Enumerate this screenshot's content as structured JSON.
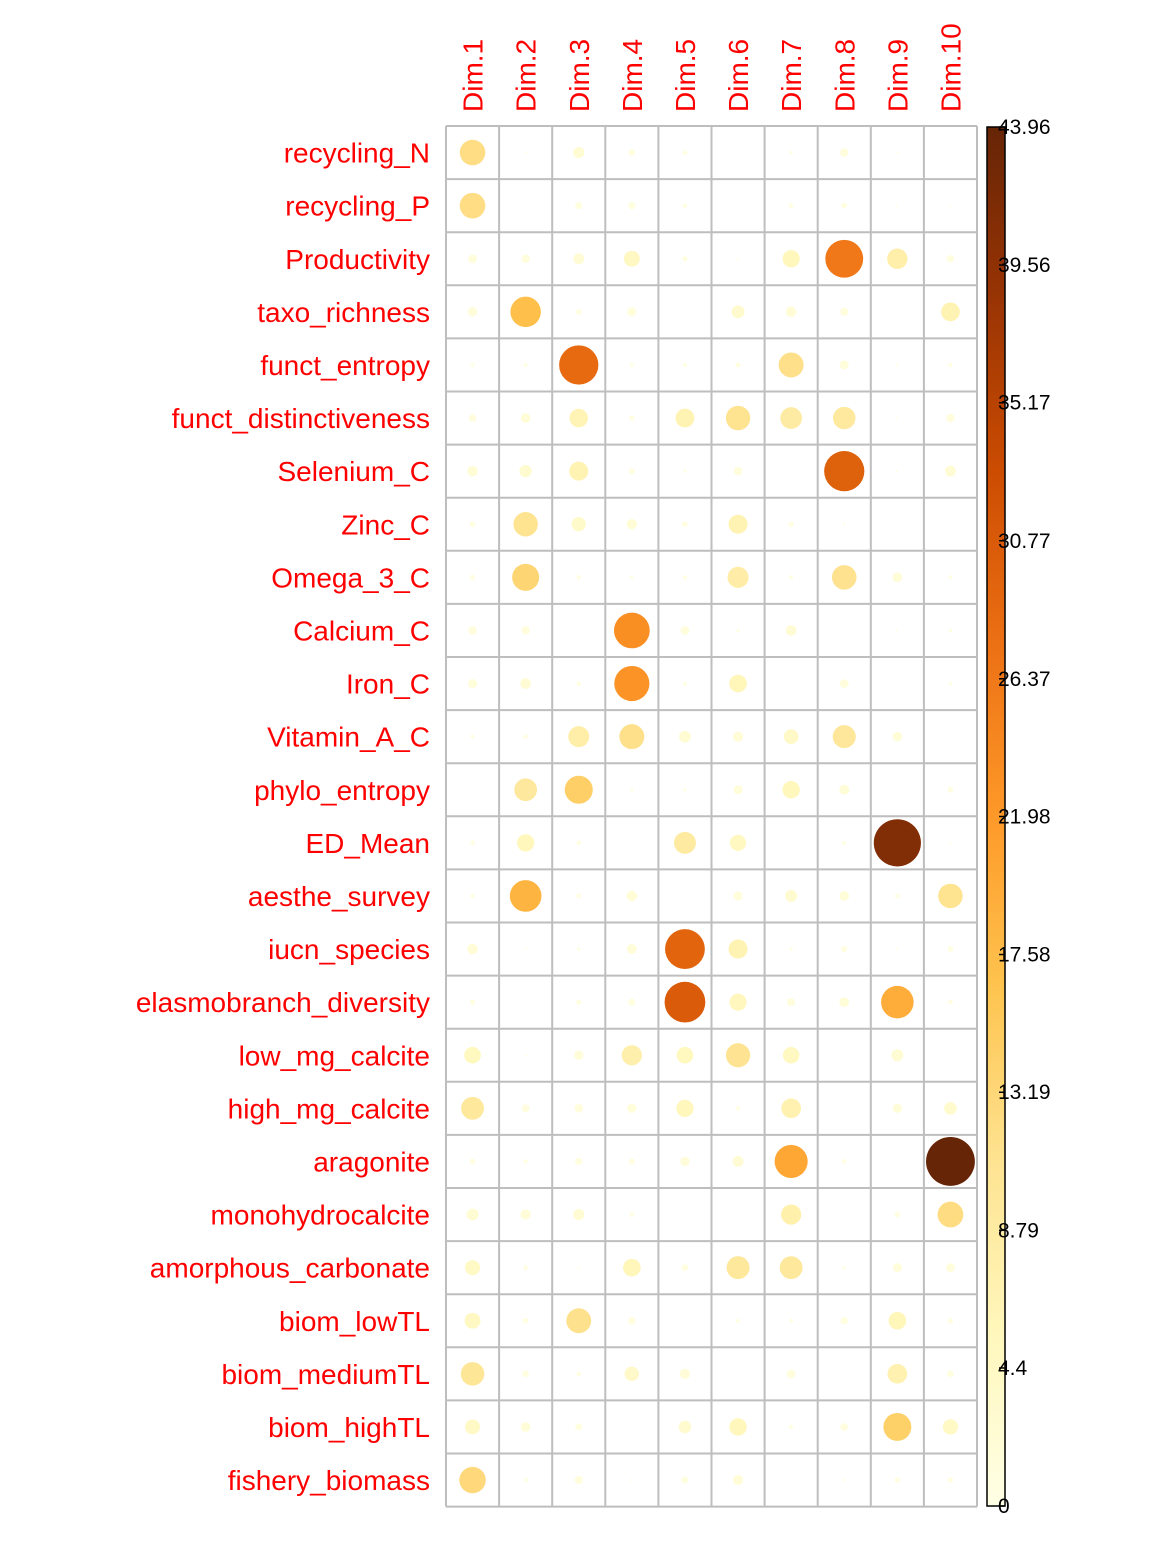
{
  "chart_data": {
    "type": "heatmap",
    "title": "",
    "columns": [
      "Dim.1",
      "Dim.2",
      "Dim.3",
      "Dim.4",
      "Dim.5",
      "Dim.6",
      "Dim.7",
      "Dim.8",
      "Dim.9",
      "Dim.10"
    ],
    "rows": [
      "recycling_N",
      "recycling_P",
      "Productivity",
      "taxo_richness",
      "funct_entropy",
      "funct_distinctiveness",
      "Selenium_C",
      "Zinc_C",
      "Omega_3_C",
      "Calcium_C",
      "Iron_C",
      "Vitamin_A_C",
      "phylo_entropy",
      "ED_Mean",
      "aesthe_survey",
      "iucn_species",
      "elasmobranch_diversity",
      "low_mg_calcite",
      "high_mg_calcite",
      "aragonite",
      "monohydrocalcite",
      "amorphous_carbonate",
      "biom_lowTL",
      "biom_mediumTL",
      "biom_highTL",
      "fishery_biomass"
    ],
    "values": [
      [
        12.0,
        0.1,
        2.3,
        0.8,
        0.4,
        0.0,
        0.2,
        1.3,
        0.1,
        0.0
      ],
      [
        12.1,
        0.0,
        0.9,
        1.0,
        0.4,
        0.0,
        0.4,
        0.6,
        0.1,
        0.1
      ],
      [
        1.4,
        1.3,
        2.2,
        4.7,
        0.5,
        0.1,
        5.5,
        26.4,
        7.7,
        1.0
      ],
      [
        1.6,
        17.1,
        0.6,
        1.5,
        0.0,
        3.1,
        2.0,
        1.2,
        0.0,
        6.5
      ],
      [
        0.3,
        0.3,
        28.4,
        0.3,
        0.3,
        0.5,
        11.5,
        1.5,
        0.1,
        0.3
      ],
      [
        1.1,
        1.7,
        6.3,
        0.5,
        6.5,
        11.0,
        8.7,
        9.3,
        0.1,
        1.3
      ],
      [
        2.0,
        2.8,
        6.6,
        0.7,
        0.2,
        1.3,
        0.0,
        29.8,
        0.1,
        2.2
      ],
      [
        0.6,
        11.0,
        3.7,
        2.0,
        0.6,
        6.7,
        0.5,
        0.1,
        0.0,
        0.0
      ],
      [
        0.5,
        13.5,
        0.4,
        0.2,
        0.3,
        8.2,
        0.3,
        11.1,
        1.8,
        0.3
      ],
      [
        1.3,
        1.3,
        0.0,
        23.5,
        1.4,
        0.2,
        2.1,
        0.0,
        0.1,
        0.2
      ],
      [
        1.5,
        2.1,
        0.4,
        22.8,
        0.3,
        5.7,
        0.0,
        1.4,
        0.0,
        0.2
      ],
      [
        0.3,
        0.4,
        8.1,
        11.5,
        2.5,
        1.9,
        4.0,
        9.8,
        1.7,
        0.0
      ],
      [
        0.0,
        9.5,
        14.5,
        0.2,
        0.2,
        1.5,
        5.6,
        1.8,
        0.0,
        0.6
      ],
      [
        0.4,
        5.5,
        0.4,
        0.0,
        8.9,
        4.8,
        0.0,
        0.3,
        41.0,
        0.1
      ],
      [
        0.3,
        18.5,
        0.4,
        2.0,
        0.0,
        1.5,
        2.7,
        1.7,
        0.4,
        11.0
      ],
      [
        2.0,
        0.1,
        0.2,
        1.8,
        29.2,
        6.7,
        0.2,
        0.7,
        0.1,
        0.6
      ],
      [
        0.5,
        0.0,
        0.5,
        0.9,
        30.6,
        5.4,
        1.2,
        1.7,
        19.5,
        0.4
      ],
      [
        5.1,
        0.1,
        1.6,
        7.6,
        5.1,
        10.8,
        5.0,
        0.0,
        2.6,
        0.0
      ],
      [
        9.6,
        1.1,
        1.3,
        1.5,
        5.5,
        0.3,
        7.1,
        0.0,
        1.6,
        3.0
      ],
      [
        0.6,
        0.3,
        1.0,
        0.7,
        1.6,
        2.2,
        20.2,
        0.4,
        0.0,
        43.96
      ],
      [
        2.6,
        1.9,
        2.3,
        0.4,
        0.0,
        0.0,
        7.5,
        0.0,
        0.6,
        12.2
      ],
      [
        4.2,
        0.4,
        0.1,
        5.7,
        0.8,
        9.7,
        9.6,
        0.2,
        1.5,
        1.4
      ],
      [
        4.6,
        0.6,
        11.4,
        1.0,
        0.0,
        0.3,
        0.3,
        1.0,
        5.7,
        0.5
      ],
      [
        10.2,
        0.8,
        0.4,
        3.8,
        1.9,
        0.0,
        1.4,
        0.0,
        7.1,
        0.8
      ],
      [
        4.1,
        1.7,
        0.9,
        0.0,
        2.9,
        5.6,
        0.3,
        1.1,
        14.4,
        4.3
      ],
      [
        12.9,
        0.3,
        1.2,
        0.1,
        0.9,
        1.9,
        0.0,
        0.1,
        0.5,
        0.5
      ]
    ],
    "scale": {
      "min": 0,
      "max": 43.96,
      "ticks": [
        0,
        4.4,
        8.79,
        13.19,
        17.58,
        21.98,
        26.37,
        30.77,
        35.17,
        39.56,
        43.96
      ],
      "tick_labels": [
        "0",
        "4.4",
        "8.79",
        "13.19",
        "17.58",
        "21.98",
        "26.37",
        "30.77",
        "35.17",
        "39.56",
        "43.96"
      ],
      "colormap": [
        "#ffffe5",
        "#fff7bc",
        "#fee391",
        "#fec44f",
        "#fe9929",
        "#ec7014",
        "#cc4c02",
        "#993404",
        "#662506"
      ]
    },
    "label_color": "#ff0000",
    "grid_color": "#bebebe",
    "grid": true,
    "legend_position": "right"
  }
}
